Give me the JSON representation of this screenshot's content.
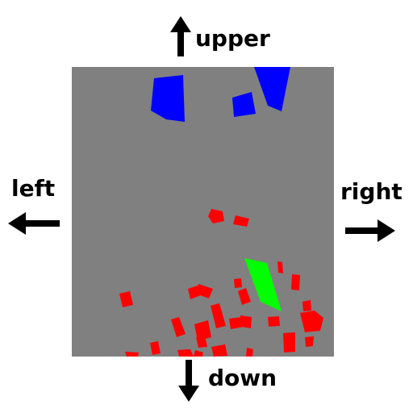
{
  "directions": {
    "upper": "upper",
    "down": "down",
    "left": "left",
    "right": "right"
  },
  "colors": {
    "background": "#808080",
    "arrow": "#000000",
    "red_objects": "#ff0000",
    "blue_objects": "#0000ff",
    "green_object": "#00ff00"
  }
}
